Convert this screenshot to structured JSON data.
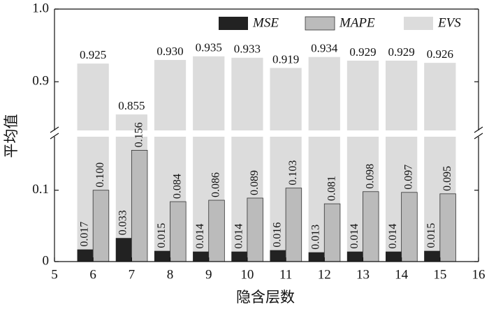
{
  "chart_data": {
    "type": "bar",
    "xlabel": "隐含层数",
    "ylabel": "平均值",
    "categories": [
      6,
      7,
      8,
      9,
      10,
      11,
      12,
      13,
      14,
      15
    ],
    "xlim": [
      5,
      16
    ],
    "xticks": [
      5,
      6,
      7,
      8,
      9,
      10,
      11,
      12,
      13,
      14,
      15,
      16
    ],
    "ylim": [
      0,
      0.175
    ],
    "yticks": [
      0,
      0.1
    ],
    "ylim_upper": [
      0.833,
      1
    ],
    "yticks_upper": [
      0.9,
      {
        "value": 1,
        "label": "1.0"
      }
    ],
    "legend": "upper right",
    "series": [
      {
        "name": "MSE",
        "color": "#222222",
        "values": [
          0.017,
          0.033,
          0.015,
          0.014,
          0.014,
          0.016,
          0.013,
          0.014,
          0.014,
          0.015
        ]
      },
      {
        "name": "MAPE",
        "color": "#bbbbbb",
        "values": [
          0.1,
          0.156,
          0.084,
          0.086,
          0.089,
          0.103,
          0.081,
          0.098,
          0.097,
          0.095
        ],
        "value_labels": [
          "0.100",
          "0.156",
          "0.084",
          "0.086",
          "0.089",
          "0.103",
          "0.081",
          "0.098",
          "0.097",
          "0.095"
        ]
      },
      {
        "name": "EVS",
        "color": "#dcdcdc",
        "values": [
          0.925,
          0.855,
          0.93,
          0.935,
          0.933,
          0.919,
          0.934,
          0.929,
          0.929,
          0.926
        ],
        "value_labels": [
          "0.925",
          "0.855",
          "0.930",
          "0.935",
          "0.933",
          "0.919",
          "0.934",
          "0.929",
          "0.929",
          "0.926"
        ]
      }
    ]
  }
}
